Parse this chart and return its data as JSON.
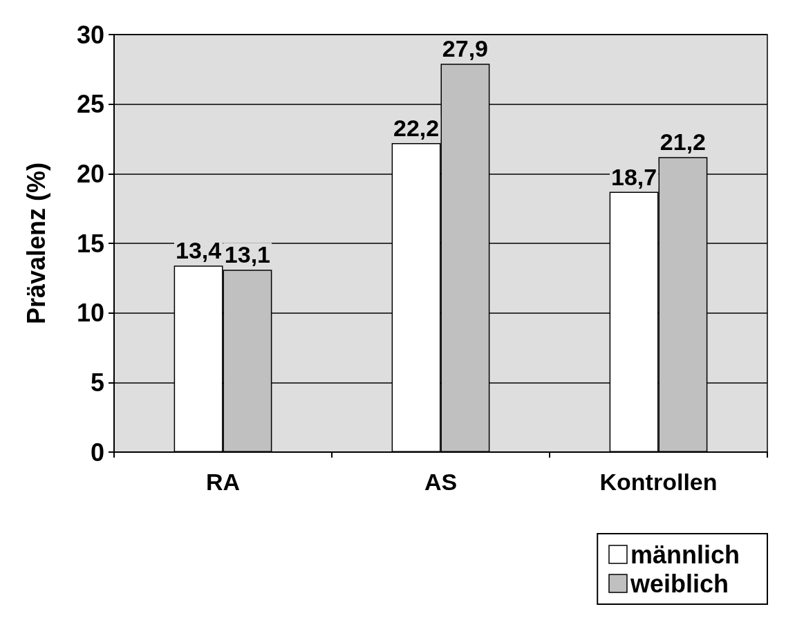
{
  "chart_data": {
    "type": "bar",
    "ylabel": "Prävalenz (%)",
    "categories": [
      "RA",
      "AS",
      "Kontrollen"
    ],
    "series": [
      {
        "name": "männlich",
        "color": "#ffffff",
        "values": [
          13.4,
          22.2,
          18.7
        ],
        "value_labels": [
          "13,4",
          "22,2",
          "18,7"
        ]
      },
      {
        "name": "weiblich",
        "color": "#c0c0c0",
        "values": [
          13.1,
          27.9,
          21.2
        ],
        "value_labels": [
          "13,1",
          "27,9",
          "21,2"
        ]
      }
    ],
    "ylim": [
      0,
      30
    ],
    "yticks": [
      0,
      5,
      10,
      15,
      20,
      25,
      30
    ],
    "grid": "y",
    "legend": "bottom right"
  }
}
